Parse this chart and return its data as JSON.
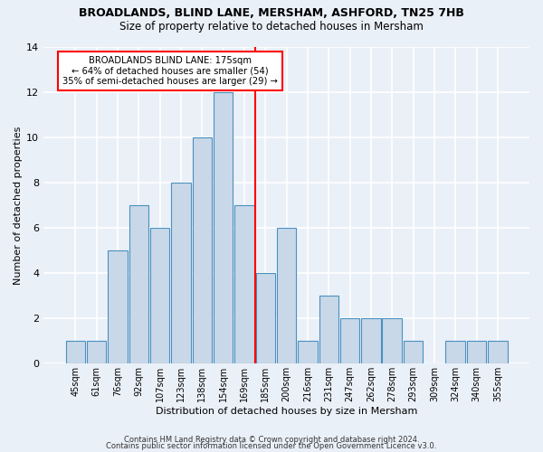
{
  "title": "BROADLANDS, BLIND LANE, MERSHAM, ASHFORD, TN25 7HB",
  "subtitle": "Size of property relative to detached houses in Mersham",
  "xlabel": "Distribution of detached houses by size in Mersham",
  "ylabel": "Number of detached properties",
  "bins": [
    "45sqm",
    "61sqm",
    "76sqm",
    "92sqm",
    "107sqm",
    "123sqm",
    "138sqm",
    "154sqm",
    "169sqm",
    "185sqm",
    "200sqm",
    "216sqm",
    "231sqm",
    "247sqm",
    "262sqm",
    "278sqm",
    "293sqm",
    "309sqm",
    "324sqm",
    "340sqm",
    "355sqm"
  ],
  "values": [
    1,
    1,
    5,
    7,
    6,
    8,
    10,
    12,
    7,
    4,
    6,
    1,
    3,
    2,
    2,
    2,
    1,
    0,
    1,
    1,
    1
  ],
  "bar_color": "#c8d8e8",
  "bar_edge_color": "#4a90c0",
  "annotation_text": "BROADLANDS BLIND LANE: 175sqm\n← 64% of detached houses are smaller (54)\n35% of semi-detached houses are larger (29) →",
  "annotation_box_color": "white",
  "annotation_box_edge_color": "red",
  "ylim": [
    0,
    14
  ],
  "yticks": [
    0,
    2,
    4,
    6,
    8,
    10,
    12,
    14
  ],
  "footer1": "Contains HM Land Registry data © Crown copyright and database right 2024.",
  "footer2": "Contains public sector information licensed under the Open Government Licence v3.0.",
  "background_color": "#eaf0f8",
  "grid_color": "white"
}
